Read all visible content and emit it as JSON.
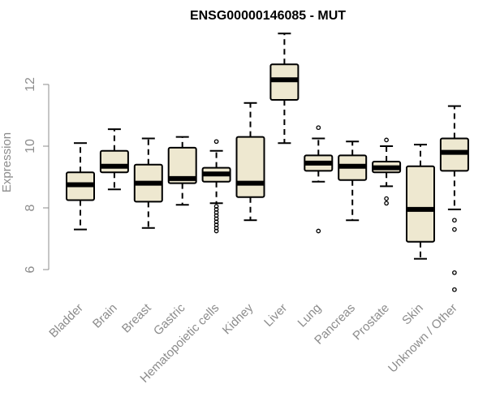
{
  "chart_data": {
    "type": "box",
    "title": "ENSG00000146085 - MUT",
    "ylabel": "Expression",
    "xlabel": "",
    "ylim": [
      5.0,
      14.1
    ],
    "yticks": [
      6,
      8,
      10,
      12
    ],
    "grid": false,
    "categories": [
      "Bladder",
      "Brain",
      "Breast",
      "Gastric",
      "Hematopoietic cells",
      "Kidney",
      "Liver",
      "Lung",
      "Pancreas",
      "Prostate",
      "Skin",
      "Unknown / Other"
    ],
    "boxes": [
      {
        "min": 7.3,
        "q1": 8.25,
        "median": 8.75,
        "q3": 9.15,
        "max": 10.1,
        "outliers": []
      },
      {
        "min": 8.6,
        "q1": 9.15,
        "median": 9.35,
        "q3": 9.85,
        "max": 10.55,
        "outliers": []
      },
      {
        "min": 7.35,
        "q1": 8.2,
        "median": 8.8,
        "q3": 9.4,
        "max": 10.25,
        "outliers": []
      },
      {
        "min": 8.1,
        "q1": 8.8,
        "median": 8.95,
        "q3": 9.95,
        "max": 10.3,
        "outliers": []
      },
      {
        "min": 8.15,
        "q1": 8.85,
        "median": 9.1,
        "q3": 9.3,
        "max": 9.85,
        "outliers": [
          10.15,
          8.05,
          7.95,
          7.85,
          7.75,
          7.65,
          7.55,
          7.45,
          7.35,
          7.25
        ]
      },
      {
        "min": 7.6,
        "q1": 8.35,
        "median": 8.8,
        "q3": 10.3,
        "max": 11.4,
        "outliers": []
      },
      {
        "min": 10.1,
        "q1": 11.5,
        "median": 12.15,
        "q3": 12.65,
        "max": 13.65,
        "outliers": []
      },
      {
        "min": 8.85,
        "q1": 9.2,
        "median": 9.45,
        "q3": 9.7,
        "max": 10.25,
        "outliers": [
          10.6,
          7.25
        ]
      },
      {
        "min": 7.6,
        "q1": 8.9,
        "median": 9.35,
        "q3": 9.7,
        "max": 10.15,
        "outliers": []
      },
      {
        "min": 8.7,
        "q1": 9.15,
        "median": 9.3,
        "q3": 9.5,
        "max": 10.0,
        "outliers": [
          10.2,
          8.3,
          8.15
        ]
      },
      {
        "min": 6.35,
        "q1": 6.9,
        "median": 7.95,
        "q3": 9.35,
        "max": 10.05,
        "outliers": []
      },
      {
        "min": 7.95,
        "q1": 9.2,
        "median": 9.8,
        "q3": 10.25,
        "max": 11.3,
        "outliers": [
          7.6,
          7.3,
          5.9,
          5.35
        ]
      }
    ],
    "colors": {
      "box_fill": "#eee8d0",
      "stroke": "#000000",
      "axis_text": "#8c8c8c"
    }
  }
}
